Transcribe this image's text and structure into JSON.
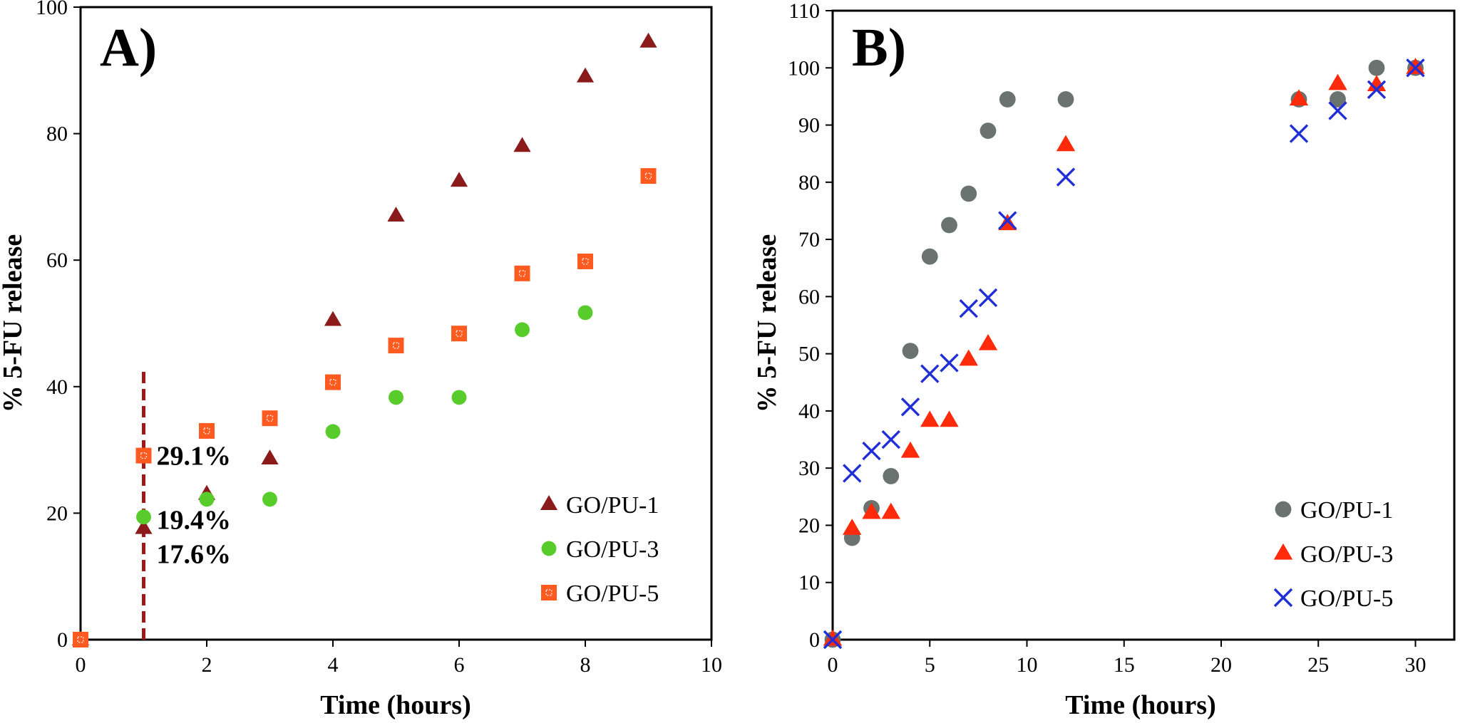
{
  "chart_data": [
    {
      "type": "scatter",
      "panel_label": "A)",
      "xlabel": "Time (hours)",
      "ylabel": "% 5-FU release",
      "xlim": [
        0,
        10
      ],
      "ylim": [
        0,
        100
      ],
      "xticks": [
        0,
        2,
        4,
        6,
        8,
        10
      ],
      "yticks": [
        0,
        20,
        40,
        60,
        80,
        100
      ],
      "legend_position": "bottom-right",
      "series": [
        {
          "name": "GO/PU-1",
          "marker": "triangle",
          "color": "#8b1a1a",
          "points": [
            [
              0,
              0
            ],
            [
              1,
              17.6
            ],
            [
              2,
              23
            ],
            [
              3,
              28.6
            ],
            [
              4,
              50.5
            ],
            [
              5,
              67
            ],
            [
              6,
              72.5
            ],
            [
              7,
              78
            ],
            [
              8,
              89
            ],
            [
              9,
              94.5
            ]
          ]
        },
        {
          "name": "GO/PU-3",
          "marker": "circle",
          "color": "#58cc2a",
          "points": [
            [
              0,
              0
            ],
            [
              1,
              19.4
            ],
            [
              2,
              22.2
            ],
            [
              3,
              22.2
            ],
            [
              4,
              32.9
            ],
            [
              5,
              38.3
            ],
            [
              6,
              38.3
            ],
            [
              7,
              49
            ],
            [
              8,
              51.7
            ]
          ]
        },
        {
          "name": "GO/PU-5",
          "marker": "square",
          "color": "#ff5a1f",
          "points": [
            [
              0,
              0
            ],
            [
              1,
              29.1
            ],
            [
              2,
              33
            ],
            [
              3,
              35
            ],
            [
              4,
              40.7
            ],
            [
              5,
              46.5
            ],
            [
              6,
              48.4
            ],
            [
              7,
              57.9
            ],
            [
              8,
              59.8
            ],
            [
              9,
              73.3
            ]
          ]
        }
      ],
      "vline": {
        "x": 1,
        "y_top": 42.5,
        "color": "#a01818"
      },
      "annotations": [
        {
          "text": "29.1%",
          "x": 1,
          "y": 29.1
        },
        {
          "text": "19.4%",
          "x": 1,
          "y": 19.4
        },
        {
          "text": "17.6%",
          "x": 1,
          "y": 17.6
        }
      ]
    },
    {
      "type": "scatter",
      "panel_label": "B)",
      "xlabel": "Time (hours)",
      "ylabel": "% 5-FU release",
      "xlim": [
        0,
        32
      ],
      "ylim": [
        0,
        110
      ],
      "xticks": [
        0,
        5,
        10,
        15,
        20,
        25,
        30
      ],
      "yticks": [
        0,
        10,
        20,
        30,
        40,
        50,
        60,
        70,
        80,
        90,
        100,
        110
      ],
      "legend_position": "bottom-right",
      "series": [
        {
          "name": "GO/PU-1",
          "marker": "circle",
          "color": "#6b7370",
          "points": [
            [
              0,
              0
            ],
            [
              1,
              17.8
            ],
            [
              2,
              23
            ],
            [
              3,
              28.6
            ],
            [
              4,
              50.5
            ],
            [
              5,
              67
            ],
            [
              6,
              72.5
            ],
            [
              7,
              78
            ],
            [
              8,
              89
            ],
            [
              9,
              94.5
            ],
            [
              12,
              94.5
            ],
            [
              24,
              94.5
            ],
            [
              26,
              94.5
            ],
            [
              28,
              100
            ],
            [
              30,
              100
            ]
          ]
        },
        {
          "name": "GO/PU-3",
          "marker": "triangle",
          "color": "#ff2a0a",
          "points": [
            [
              0,
              0
            ],
            [
              1,
              19.4
            ],
            [
              2,
              22.2
            ],
            [
              3,
              22.2
            ],
            [
              4,
              32.9
            ],
            [
              5,
              38.3
            ],
            [
              6,
              38.3
            ],
            [
              7,
              49
            ],
            [
              8,
              51.7
            ],
            [
              9,
              72.7
            ],
            [
              12,
              86.5
            ],
            [
              24,
              94.5
            ],
            [
              26,
              97.2
            ],
            [
              28,
              97
            ],
            [
              30,
              100
            ]
          ]
        },
        {
          "name": "GO/PU-5",
          "marker": "x",
          "color": "#1f2ed6",
          "points": [
            [
              0,
              0
            ],
            [
              1,
              29.1
            ],
            [
              2,
              33
            ],
            [
              3,
              35
            ],
            [
              4,
              40.7
            ],
            [
              5,
              46.5
            ],
            [
              6,
              48.4
            ],
            [
              7,
              57.9
            ],
            [
              8,
              59.8
            ],
            [
              9,
              73.3
            ],
            [
              12,
              80.9
            ],
            [
              24,
              88.5
            ],
            [
              26,
              92.5
            ],
            [
              28,
              96.2
            ],
            [
              30,
              100
            ]
          ]
        }
      ]
    }
  ]
}
